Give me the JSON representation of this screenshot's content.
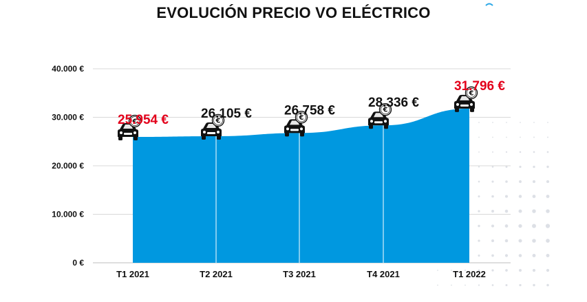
{
  "chart_data": {
    "type": "area",
    "title": "EVOLUCIÓN PRECIO VO ELÉCTRICO",
    "categories": [
      "T1 2021",
      "T2 2021",
      "T3 2021",
      "T4 2021",
      "T1 2022"
    ],
    "values": [
      25954,
      26105,
      26758,
      28336,
      31796
    ],
    "data_labels": [
      "25.954 €",
      "26.105 €",
      "26.758 €",
      "28.336 €",
      "31.796 €"
    ],
    "highlighted_labels": [
      0,
      4
    ],
    "y_ticks": [
      {
        "value": 0,
        "label": "0 €"
      },
      {
        "value": 10000,
        "label": "10.000 €"
      },
      {
        "value": 20000,
        "label": "20.000 €"
      },
      {
        "value": 30000,
        "label": "30.000 €"
      },
      {
        "value": 40000,
        "label": "40.000 €"
      }
    ],
    "ylim": [
      0,
      40000
    ],
    "grid": true,
    "legend": "none",
    "marker_icon": "car-euro-icon",
    "colors": {
      "area": "#0098e0",
      "highlight_label": "#e3001b",
      "normal_label": "#111111",
      "grid": "#d9d9d9",
      "dots": "#dde0e6"
    }
  }
}
